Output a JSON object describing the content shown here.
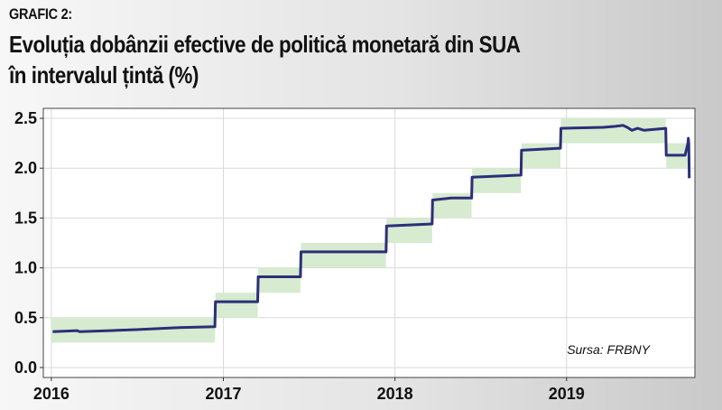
{
  "header": {
    "label": "GRAFIC 2:",
    "title_line1": "Evoluția dobânzii efective de politică monetară din SUA",
    "title_line2": "în intervalul țintă (%)"
  },
  "source_note": "Sursa: FRBNY",
  "colors": {
    "line": "#2b2f7a",
    "band": "#d6ebcf",
    "grid": "#d9d9d9",
    "plot_bg": "#ffffff"
  },
  "chart_data": {
    "type": "line",
    "title": "Evoluția dobânzii efective de politică monetară din SUA în intervalul țintă (%)",
    "xlabel": "",
    "ylabel": "",
    "xlim": [
      "2015-12-15",
      "2019-10-01"
    ],
    "ylim": [
      -0.1,
      2.6
    ],
    "x_ticks": [
      "2016",
      "2017",
      "2018",
      "2019"
    ],
    "y_ticks": [
      "0.0",
      "0.5",
      "1.0",
      "1.5",
      "2.0",
      "2.5"
    ],
    "grid": true,
    "target_range": [
      {
        "start": "2016-01-01",
        "end": "2016-12-14",
        "low": 0.25,
        "high": 0.5
      },
      {
        "start": "2016-12-15",
        "end": "2017-03-15",
        "low": 0.5,
        "high": 0.75
      },
      {
        "start": "2017-03-16",
        "end": "2017-06-14",
        "low": 0.75,
        "high": 1.0
      },
      {
        "start": "2017-06-15",
        "end": "2017-12-13",
        "low": 1.0,
        "high": 1.25
      },
      {
        "start": "2017-12-14",
        "end": "2018-03-21",
        "low": 1.25,
        "high": 1.5
      },
      {
        "start": "2018-03-22",
        "end": "2018-06-13",
        "low": 1.5,
        "high": 1.75
      },
      {
        "start": "2018-06-14",
        "end": "2018-09-26",
        "low": 1.75,
        "high": 2.0
      },
      {
        "start": "2018-09-27",
        "end": "2018-12-19",
        "low": 2.0,
        "high": 2.25
      },
      {
        "start": "2018-12-20",
        "end": "2019-07-31",
        "low": 2.25,
        "high": 2.5
      },
      {
        "start": "2019-08-01",
        "end": "2019-09-15",
        "low": 2.0,
        "high": 2.25
      }
    ],
    "series": [
      {
        "values": [
          [
            "2016-01-04",
            0.36
          ],
          [
            "2016-02-25",
            0.37
          ],
          [
            "2016-03-01",
            0.36
          ],
          [
            "2016-05-05",
            0.37
          ],
          [
            "2016-06-30",
            0.38
          ],
          [
            "2016-09-29",
            0.4
          ],
          [
            "2016-12-14",
            0.41
          ],
          [
            "2016-12-15",
            0.66
          ],
          [
            "2017-03-15",
            0.66
          ],
          [
            "2017-03-16",
            0.91
          ],
          [
            "2017-06-14",
            0.91
          ],
          [
            "2017-06-15",
            1.16
          ],
          [
            "2017-12-13",
            1.16
          ],
          [
            "2017-12-14",
            1.42
          ],
          [
            "2018-03-21",
            1.44
          ],
          [
            "2018-03-22",
            1.68
          ],
          [
            "2018-05-01",
            1.7
          ],
          [
            "2018-06-13",
            1.7
          ],
          [
            "2018-06-14",
            1.91
          ],
          [
            "2018-09-26",
            1.93
          ],
          [
            "2018-09-27",
            2.18
          ],
          [
            "2018-12-19",
            2.2
          ],
          [
            "2018-12-20",
            2.4
          ],
          [
            "2019-03-20",
            2.41
          ],
          [
            "2019-04-15",
            2.42
          ],
          [
            "2019-05-01",
            2.43
          ],
          [
            "2019-05-10",
            2.41
          ],
          [
            "2019-05-20",
            2.38
          ],
          [
            "2019-06-01",
            2.4
          ],
          [
            "2019-06-15",
            2.38
          ],
          [
            "2019-07-31",
            2.4
          ],
          [
            "2019-08-01",
            2.13
          ],
          [
            "2019-09-10",
            2.13
          ],
          [
            "2019-09-16",
            2.25
          ],
          [
            "2019-09-17",
            2.3
          ],
          [
            "2019-09-18",
            2.25
          ],
          [
            "2019-09-19",
            1.9
          ]
        ]
      }
    ]
  }
}
